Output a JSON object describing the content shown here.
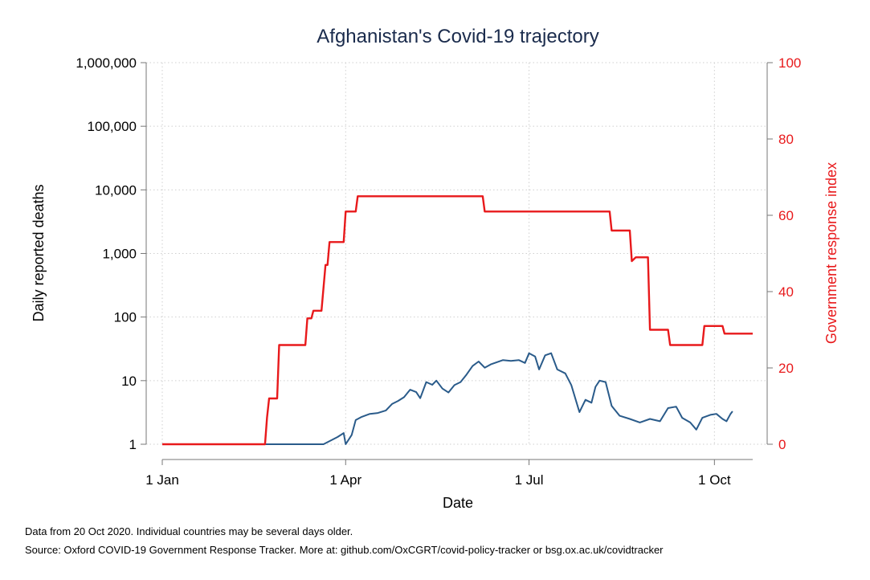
{
  "chart_data": {
    "type": "line",
    "title": "Afghanistan's Covid-19 trajectory",
    "xlabel": "Date",
    "ylabel": "Daily reported deaths",
    "y2label": "Government response index",
    "x_ticks": [
      {
        "label": "1 Jan",
        "day": 0
      },
      {
        "label": "1 Apr",
        "day": 91
      },
      {
        "label": "1 Jul",
        "day": 182
      },
      {
        "label": "1 Oct",
        "day": 274
      }
    ],
    "xlim": [
      "2020-01-01",
      "2020-10-20"
    ],
    "y_scale": "log",
    "ylim": [
      1,
      1000000
    ],
    "y_ticks": [
      {
        "label": "1",
        "value": 1
      },
      {
        "label": "10",
        "value": 10
      },
      {
        "label": "100",
        "value": 100
      },
      {
        "label": "1,000",
        "value": 1000
      },
      {
        "label": "10,000",
        "value": 10000
      },
      {
        "label": "100,000",
        "value": 100000
      },
      {
        "label": "1,000,000",
        "value": 1000000
      }
    ],
    "y2lim": [
      0,
      100
    ],
    "y2_ticks": [
      {
        "label": "0",
        "value": 0
      },
      {
        "label": "20",
        "value": 20
      },
      {
        "label": "40",
        "value": 40
      },
      {
        "label": "60",
        "value": 60
      },
      {
        "label": "80",
        "value": 80
      },
      {
        "label": "100",
        "value": 100
      }
    ],
    "grid": true,
    "series": [
      {
        "axis": "left",
        "color": "#2a5b8a",
        "points": [
          [
            "2020-01-01",
            1
          ],
          [
            "2020-04-01",
            1
          ],
          [
            "2020-03-21",
            1
          ],
          [
            "2020-03-28",
            1.3
          ],
          [
            "2020-03-31",
            1.5
          ],
          [
            "2020-04-04",
            1.4
          ],
          [
            "2020-04-06",
            2.4
          ],
          [
            "2020-04-09",
            2.7
          ],
          [
            "2020-04-13",
            3.0
          ],
          [
            "2020-04-17",
            3.1
          ],
          [
            "2020-04-21",
            3.4
          ],
          [
            "2020-04-24",
            4.3
          ],
          [
            "2020-04-27",
            4.8
          ],
          [
            "2020-04-30",
            5.5
          ],
          [
            "2020-05-03",
            7.2
          ],
          [
            "2020-05-06",
            6.6
          ],
          [
            "2020-05-08",
            5.3
          ],
          [
            "2020-05-11",
            9.5
          ],
          [
            "2020-05-14",
            8.6
          ],
          [
            "2020-05-16",
            10.0
          ],
          [
            "2020-05-19",
            7.5
          ],
          [
            "2020-05-22",
            6.5
          ],
          [
            "2020-05-25",
            8.5
          ],
          [
            "2020-05-28",
            9.5
          ],
          [
            "2020-05-31",
            12.5
          ],
          [
            "2020-06-03",
            17.0
          ],
          [
            "2020-06-06",
            20.0
          ],
          [
            "2020-06-09",
            16.0
          ],
          [
            "2020-06-12",
            18.0
          ],
          [
            "2020-06-15",
            19.5
          ],
          [
            "2020-06-18",
            21.0
          ],
          [
            "2020-06-22",
            20.5
          ],
          [
            "2020-06-26",
            21.0
          ],
          [
            "2020-06-29",
            19.0
          ],
          [
            "2020-07-01",
            27.0
          ],
          [
            "2020-07-04",
            24.0
          ],
          [
            "2020-07-06",
            15.0
          ],
          [
            "2020-07-09",
            25.0
          ],
          [
            "2020-07-12",
            27.0
          ],
          [
            "2020-07-15",
            15.0
          ],
          [
            "2020-07-19",
            13.0
          ],
          [
            "2020-07-22",
            8.5
          ],
          [
            "2020-07-26",
            3.2
          ],
          [
            "2020-07-29",
            5.0
          ],
          [
            "2020-08-01",
            4.5
          ],
          [
            "2020-08-03",
            8.0
          ],
          [
            "2020-08-05",
            10.0
          ],
          [
            "2020-08-08",
            9.5
          ],
          [
            "2020-08-11",
            4.0
          ],
          [
            "2020-08-15",
            2.8
          ],
          [
            "2020-08-20",
            2.5
          ],
          [
            "2020-08-25",
            2.2
          ],
          [
            "2020-08-30",
            2.5
          ],
          [
            "2020-09-04",
            2.3
          ],
          [
            "2020-09-08",
            3.7
          ],
          [
            "2020-09-12",
            3.9
          ],
          [
            "2020-09-15",
            2.6
          ],
          [
            "2020-09-19",
            2.2
          ],
          [
            "2020-09-22",
            1.7
          ],
          [
            "2020-09-25",
            2.6
          ],
          [
            "2020-09-29",
            2.9
          ],
          [
            "2020-10-02",
            3.0
          ],
          [
            "2020-10-05",
            2.5
          ],
          [
            "2020-10-07",
            2.3
          ],
          [
            "2020-10-09",
            3.0
          ],
          [
            "2020-10-10",
            3.3
          ]
        ]
      },
      {
        "axis": "right",
        "color": "#e8191b",
        "points": [
          [
            "2020-01-01",
            0
          ],
          [
            "2020-02-21",
            0
          ],
          [
            "2020-02-22",
            7
          ],
          [
            "2020-02-23",
            12
          ],
          [
            "2020-02-27",
            12
          ],
          [
            "2020-02-28",
            26
          ],
          [
            "2020-03-12",
            26
          ],
          [
            "2020-03-13",
            33
          ],
          [
            "2020-03-15",
            33
          ],
          [
            "2020-03-16",
            35
          ],
          [
            "2020-03-20",
            35
          ],
          [
            "2020-03-22",
            47
          ],
          [
            "2020-03-23",
            47
          ],
          [
            "2020-03-24",
            53
          ],
          [
            "2020-03-31",
            53
          ],
          [
            "2020-04-01",
            61
          ],
          [
            "2020-04-06",
            61
          ],
          [
            "2020-04-07",
            65
          ],
          [
            "2020-06-08",
            65
          ],
          [
            "2020-06-09",
            61
          ],
          [
            "2020-08-10",
            61
          ],
          [
            "2020-08-11",
            56
          ],
          [
            "2020-08-20",
            56
          ],
          [
            "2020-08-21",
            48
          ],
          [
            "2020-08-23",
            49
          ],
          [
            "2020-08-29",
            49
          ],
          [
            "2020-08-30",
            30
          ],
          [
            "2020-09-08",
            30
          ],
          [
            "2020-09-09",
            26
          ],
          [
            "2020-09-25",
            26
          ],
          [
            "2020-09-26",
            31
          ],
          [
            "2020-10-05",
            31
          ],
          [
            "2020-10-06",
            29
          ],
          [
            "2020-10-20",
            29
          ]
        ]
      }
    ]
  },
  "footnotes": {
    "line1": "Data from 20 Oct 2020. Individual countries may be several days older.",
    "line2": "Source: Oxford COVID-19 Government Response Tracker. More at: github.com/OxCGRT/covid-policy-tracker or bsg.ox.ac.uk/covidtracker"
  }
}
